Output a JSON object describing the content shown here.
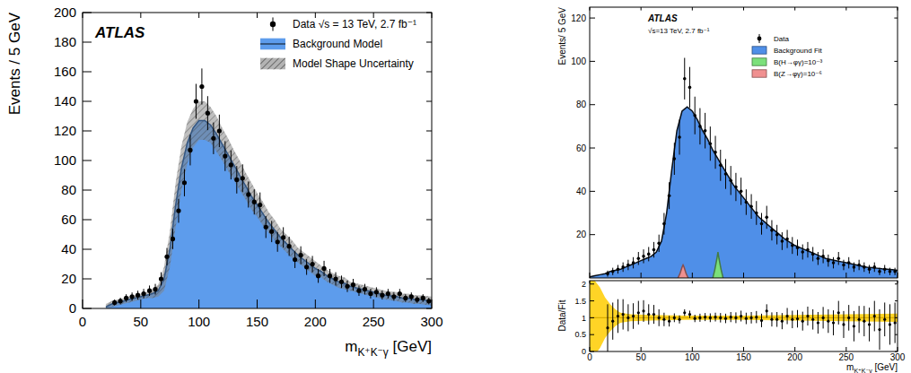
{
  "chart_data": [
    {
      "type": "scatter",
      "annotations": [
        "ATLAS"
      ],
      "x_label": "mK⁺K⁻γ [GeV]",
      "y_label": "Events / 5 GeV",
      "xlim": [
        0,
        300
      ],
      "ylim": [
        0,
        200
      ],
      "xticks": [
        0,
        50,
        100,
        150,
        200,
        250,
        300
      ],
      "yticks": [
        0,
        20,
        40,
        60,
        80,
        100,
        120,
        140,
        160,
        180,
        200
      ],
      "legend": "top right",
      "series": [
        {
          "name": "Data √s =  13 TeV, 2.7 fb⁻¹",
          "type": "scatter",
          "marker": "circle",
          "color": "#000000",
          "x": [
            27.5,
            32.5,
            37.5,
            42.5,
            47.5,
            52.5,
            57.5,
            62.5,
            67.5,
            72.5,
            77.5,
            82.5,
            87.5,
            92.5,
            97.5,
            102.5,
            107.5,
            112.5,
            117.5,
            122.5,
            127.5,
            132.5,
            137.5,
            142.5,
            147.5,
            152.5,
            157.5,
            162.5,
            167.5,
            172.5,
            177.5,
            182.5,
            187.5,
            192.5,
            197.5,
            202.5,
            207.5,
            212.5,
            217.5,
            222.5,
            227.5,
            232.5,
            237.5,
            242.5,
            247.5,
            252.5,
            257.5,
            262.5,
            267.5,
            272.5,
            277.5,
            282.5,
            287.5,
            292.5,
            297.5
          ],
          "values": [
            4,
            5,
            7,
            8,
            9,
            10,
            12,
            13,
            20,
            35,
            47,
            66,
            85,
            107,
            140,
            150,
            132,
            115,
            120,
            103,
            97,
            87,
            88,
            77,
            72,
            70,
            55,
            52,
            45,
            48,
            42,
            33,
            36,
            28,
            30,
            22,
            27,
            22,
            20,
            18,
            15,
            16,
            12,
            13,
            10,
            11,
            9,
            10,
            8,
            10,
            7,
            8,
            6,
            7,
            5
          ],
          "errors": [
            2,
            2.2,
            2.6,
            2.8,
            3,
            3.2,
            3.5,
            3.6,
            4.5,
            5.9,
            6.9,
            8.1,
            9.2,
            10.3,
            11.8,
            12.2,
            11.5,
            10.7,
            11,
            10.1,
            9.8,
            9.3,
            9.4,
            8.8,
            8.5,
            8.4,
            7.4,
            7.2,
            6.7,
            6.9,
            6.5,
            5.7,
            6,
            5.3,
            5.5,
            4.7,
            5.2,
            4.7,
            4.5,
            4.2,
            3.9,
            4,
            3.5,
            3.6,
            3.2,
            3.3,
            3,
            3.2,
            2.8,
            3.2,
            2.6,
            2.8,
            2.4,
            2.6,
            2.2
          ]
        },
        {
          "name": "Background Model",
          "type": "area",
          "color": "#5d9cec",
          "x": [
            20,
            25,
            30,
            35,
            40,
            45,
            50,
            55,
            60,
            65,
            70,
            75,
            80,
            85,
            90,
            95,
            100,
            105,
            110,
            115,
            120,
            125,
            130,
            135,
            140,
            145,
            150,
            155,
            160,
            165,
            170,
            175,
            180,
            185,
            190,
            195,
            200,
            205,
            210,
            215,
            220,
            225,
            230,
            235,
            240,
            245,
            250,
            255,
            260,
            265,
            270,
            275,
            280,
            285,
            290,
            295,
            300
          ],
          "values": [
            1,
            3,
            4,
            5,
            6,
            7,
            8,
            9,
            10,
            12,
            20,
            40,
            70,
            95,
            112,
            122,
            127,
            127,
            124,
            118,
            111,
            104,
            97,
            90,
            83,
            76,
            70,
            64,
            58,
            53,
            48,
            44,
            40,
            36,
            33,
            30,
            27,
            25,
            22,
            20,
            18,
            17,
            15,
            14,
            13,
            12,
            11,
            10,
            9,
            8.5,
            8,
            7,
            7,
            6,
            6,
            5.5,
            5
          ]
        },
        {
          "name": "Model Shape Uncertainty",
          "type": "band",
          "color": "#808080",
          "x": [
            20,
            25,
            30,
            35,
            40,
            45,
            50,
            55,
            60,
            65,
            70,
            75,
            80,
            85,
            90,
            95,
            100,
            105,
            110,
            115,
            120,
            125,
            130,
            135,
            140,
            145,
            150,
            155,
            160,
            165,
            170,
            175,
            180,
            185,
            190,
            195,
            200,
            205,
            210,
            215,
            220,
            225,
            230,
            235,
            240,
            245,
            250,
            255,
            260,
            265,
            270,
            275,
            280,
            285,
            290,
            295,
            300
          ],
          "values": [
            1,
            3,
            4,
            5,
            6,
            7,
            8,
            9,
            10,
            12,
            20,
            40,
            70,
            95,
            112,
            122,
            127,
            127,
            124,
            118,
            111,
            104,
            97,
            90,
            83,
            76,
            70,
            64,
            58,
            53,
            48,
            44,
            40,
            36,
            33,
            30,
            27,
            25,
            22,
            20,
            18,
            17,
            15,
            14,
            13,
            12,
            11,
            10,
            9,
            8.5,
            8,
            7,
            7,
            6,
            6,
            5.5,
            5
          ],
          "errors": [
            2,
            2,
            2,
            2,
            2,
            2,
            2,
            2,
            3,
            4,
            8,
            12,
            15,
            15,
            14,
            13,
            13,
            13,
            12,
            12,
            11,
            11,
            10,
            10,
            9,
            9,
            8,
            8,
            7,
            7,
            6,
            6,
            6,
            5,
            5,
            5,
            5,
            4,
            4,
            4,
            4,
            4,
            3,
            3,
            3,
            3,
            3,
            3,
            3,
            3,
            3,
            3,
            3,
            3,
            3,
            3,
            3
          ]
        }
      ]
    },
    {
      "type": "scatter",
      "annotations": [
        "ATLAS",
        "√s=13 TeV, 2.7 fb⁻¹"
      ],
      "y_label": "Events/ 5 GeV",
      "xlim": [
        0,
        300
      ],
      "ylim": [
        0,
        125
      ],
      "xticks": [
        0,
        50,
        100,
        150,
        200,
        250,
        300
      ],
      "yticks": [
        20,
        40,
        60,
        80,
        100,
        120
      ],
      "tick_labels": "y",
      "legend": "top right",
      "series": [
        {
          "name": "Data",
          "type": "scatter",
          "marker": "circle",
          "color": "#000000",
          "x": [
            17.5,
            22.5,
            27.5,
            32.5,
            37.5,
            42.5,
            47.5,
            52.5,
            57.5,
            62.5,
            67.5,
            72.5,
            77.5,
            82.5,
            87.5,
            92.5,
            97.5,
            102.5,
            107.5,
            112.5,
            117.5,
            122.5,
            127.5,
            132.5,
            137.5,
            142.5,
            147.5,
            152.5,
            157.5,
            162.5,
            167.5,
            172.5,
            177.5,
            182.5,
            187.5,
            192.5,
            197.5,
            202.5,
            207.5,
            212.5,
            217.5,
            222.5,
            227.5,
            232.5,
            237.5,
            242.5,
            247.5,
            252.5,
            257.5,
            262.5,
            267.5,
            272.5,
            277.5,
            282.5,
            287.5,
            292.5,
            297.5
          ],
          "values": [
            2,
            3,
            4,
            5,
            6,
            7,
            9,
            10,
            11,
            13,
            16,
            25,
            38,
            55,
            65,
            92,
            88,
            75,
            70,
            68,
            62,
            58,
            52,
            48,
            45,
            42,
            40,
            35,
            33,
            30,
            25,
            28,
            22,
            20,
            17,
            18,
            15,
            14,
            12,
            13,
            11,
            9,
            10,
            8,
            7,
            9,
            6,
            7,
            5,
            6,
            5,
            4,
            5,
            3,
            4,
            3,
            3
          ],
          "errors": [
            1.4,
            1.7,
            2,
            2.2,
            2.4,
            2.6,
            3,
            3.2,
            3.3,
            3.6,
            4,
            5,
            6.2,
            7.4,
            8.1,
            9.6,
            9.4,
            8.7,
            8.4,
            8.2,
            7.9,
            7.6,
            7.2,
            6.9,
            6.7,
            6.5,
            6.3,
            5.9,
            5.7,
            5.5,
            5,
            5.3,
            4.7,
            4.5,
            4.1,
            4.2,
            3.9,
            3.7,
            3.5,
            3.6,
            3.3,
            3,
            3.2,
            2.8,
            2.6,
            3,
            2.4,
            2.6,
            2.2,
            2.4,
            2.2,
            2,
            2.2,
            1.7,
            2,
            1.7,
            1.7
          ]
        },
        {
          "name": "Background Fit",
          "type": "area",
          "color": "#4f8fe8",
          "x": [
            0,
            5,
            10,
            15,
            20,
            25,
            30,
            35,
            40,
            45,
            50,
            55,
            60,
            65,
            70,
            75,
            80,
            85,
            90,
            95,
            100,
            105,
            110,
            115,
            120,
            125,
            130,
            135,
            140,
            145,
            150,
            155,
            160,
            165,
            170,
            175,
            180,
            185,
            190,
            195,
            200,
            205,
            210,
            215,
            220,
            225,
            230,
            235,
            240,
            245,
            250,
            255,
            260,
            265,
            270,
            275,
            280,
            285,
            290,
            295,
            300
          ],
          "values": [
            0.5,
            1,
            1.5,
            2,
            3,
            3.5,
            4,
            5,
            6,
            7,
            8,
            9,
            10,
            12,
            17,
            30,
            50,
            68,
            77,
            79,
            77,
            73,
            68,
            64,
            59,
            55,
            51,
            47,
            43,
            40,
            37,
            34,
            31,
            28,
            26,
            24,
            22,
            20,
            18,
            16.5,
            15,
            14,
            13,
            12,
            11,
            10,
            9,
            8.5,
            8,
            7.5,
            7,
            6.5,
            6,
            5.5,
            5,
            4.8,
            4.5,
            4.2,
            4,
            3.8,
            3.5
          ]
        },
        {
          "name": "B(H→φγ)=10⁻³",
          "type": "area",
          "color": "#7be07b",
          "x": [
            120,
            122,
            124,
            125,
            126,
            128,
            130
          ],
          "values": [
            0,
            4,
            9,
            12,
            9,
            4,
            0
          ]
        },
        {
          "name": "B(Z→φγ)=10⁻⁶",
          "type": "area",
          "color": "#f09090",
          "x": [
            86,
            88,
            90,
            91,
            92,
            94,
            96
          ],
          "values": [
            0,
            2,
            5,
            6,
            5,
            2,
            0
          ]
        }
      ]
    },
    {
      "type": "scatter",
      "x_label": "mK⁺K⁻γ [GeV]",
      "y_label": "Data/Fit",
      "xlim": [
        0,
        300
      ],
      "ylim": [
        0,
        2.1
      ],
      "xticks": [
        0,
        50,
        100,
        150,
        200,
        250,
        300
      ],
      "yticks": [
        0,
        0.5,
        1,
        1.5,
        2
      ],
      "series": [
        {
          "type": "band",
          "color": "#ffcc00",
          "line_style": "solid",
          "x": [
            0,
            5,
            10,
            15,
            20,
            25,
            30,
            40,
            60,
            100,
            150,
            200,
            250,
            300
          ],
          "values": [
            1,
            1,
            1,
            1,
            1,
            1,
            1,
            1,
            1,
            1,
            1,
            1,
            1,
            1
          ],
          "errors": [
            1.2,
            1.1,
            0.9,
            0.6,
            0.4,
            0.25,
            0.15,
            0.1,
            0.08,
            0.06,
            0.06,
            0.08,
            0.1,
            0.12
          ]
        },
        {
          "type": "scatter",
          "marker": "circle",
          "color": "#000000",
          "x": [
            17.5,
            22.5,
            27.5,
            32.5,
            37.5,
            42.5,
            47.5,
            52.5,
            57.5,
            62.5,
            67.5,
            72.5,
            77.5,
            82.5,
            87.5,
            92.5,
            97.5,
            102.5,
            107.5,
            112.5,
            117.5,
            122.5,
            127.5,
            132.5,
            137.5,
            142.5,
            147.5,
            152.5,
            157.5,
            162.5,
            167.5,
            172.5,
            177.5,
            182.5,
            187.5,
            192.5,
            197.5,
            202.5,
            207.5,
            212.5,
            217.5,
            222.5,
            227.5,
            232.5,
            237.5,
            242.5,
            247.5,
            252.5,
            257.5,
            262.5,
            267.5,
            272.5,
            277.5,
            282.5,
            287.5,
            292.5,
            297.5
          ],
          "values": [
            0.7,
            0.9,
            1.05,
            1.1,
            1.0,
            1.05,
            1.15,
            1.2,
            1.1,
            1.1,
            1.0,
            0.95,
            0.9,
            1.0,
            0.95,
            1.15,
            1.1,
            0.98,
            1.0,
            1.02,
            1.0,
            1.02,
            1.0,
            0.98,
            1.02,
            1.0,
            1.05,
            0.98,
            1.0,
            1.02,
            0.92,
            1.2,
            0.95,
            0.95,
            0.9,
            1.05,
            0.95,
            0.97,
            0.9,
            1.05,
            0.95,
            0.85,
            1.0,
            0.9,
            0.85,
            1.15,
            0.8,
            1.0,
            0.75,
            0.95,
            0.9,
            0.8,
            1.05,
            0.65,
            0.95,
            0.8,
            0.85
          ],
          "errors": [
            0.7,
            0.55,
            0.5,
            0.45,
            0.4,
            0.38,
            0.35,
            0.32,
            0.3,
            0.28,
            0.25,
            0.2,
            0.16,
            0.13,
            0.12,
            0.1,
            0.11,
            0.11,
            0.12,
            0.12,
            0.13,
            0.13,
            0.14,
            0.14,
            0.15,
            0.16,
            0.16,
            0.17,
            0.17,
            0.18,
            0.2,
            0.2,
            0.21,
            0.22,
            0.24,
            0.24,
            0.26,
            0.26,
            0.28,
            0.28,
            0.3,
            0.32,
            0.32,
            0.35,
            0.37,
            0.35,
            0.4,
            0.38,
            0.45,
            0.4,
            0.45,
            0.5,
            0.45,
            0.6,
            0.5,
            0.6,
            0.6
          ]
        }
      ]
    }
  ]
}
